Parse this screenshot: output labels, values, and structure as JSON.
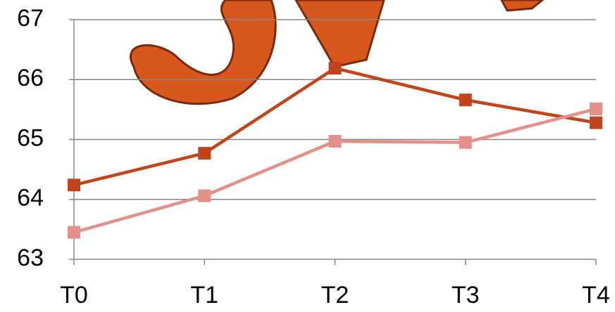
{
  "chart_data": {
    "type": "line",
    "categories": [
      "T0",
      "T1",
      "T2",
      "T3",
      "T4"
    ],
    "series": [
      {
        "color": "#c2441a",
        "values": [
          64.24,
          64.77,
          66.19,
          65.66,
          65.28
        ]
      },
      {
        "color": "#e39088",
        "values": [
          63.45,
          64.06,
          64.97,
          64.95,
          65.51
        ]
      }
    ],
    "ylim": [
      63,
      67
    ],
    "yticks": [
      63,
      64,
      65,
      66,
      67
    ],
    "grid": true
  }
}
